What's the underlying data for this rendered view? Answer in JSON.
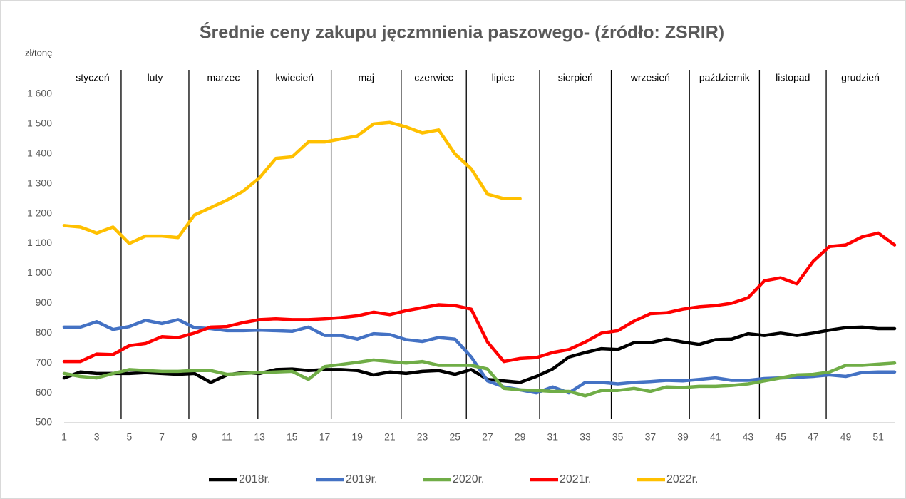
{
  "chart_data": {
    "type": "line",
    "title": "Średnie ceny zakupu jęczmnienia paszowego- (źródło: ZSRIR)",
    "y_label": "zł/tonę",
    "x": [
      1,
      2,
      3,
      4,
      5,
      6,
      7,
      8,
      9,
      10,
      11,
      12,
      13,
      14,
      15,
      16,
      17,
      18,
      19,
      20,
      21,
      22,
      23,
      24,
      25,
      26,
      27,
      28,
      29,
      30,
      31,
      32,
      33,
      34,
      35,
      36,
      37,
      38,
      39,
      40,
      41,
      42,
      43,
      44,
      45,
      46,
      47,
      48,
      49,
      50,
      51,
      52
    ],
    "xlim": [
      1,
      52
    ],
    "xticks": [
      1,
      3,
      5,
      7,
      9,
      11,
      13,
      15,
      17,
      19,
      21,
      23,
      25,
      27,
      29,
      31,
      33,
      35,
      37,
      39,
      41,
      43,
      45,
      47,
      49,
      51
    ],
    "ylim": [
      500,
      1600
    ],
    "yticks": [
      500,
      600,
      700,
      800,
      900,
      {
        "value": 1000,
        "label": "1 000"
      },
      {
        "value": 1100,
        "label": "1 100"
      },
      {
        "value": 1200,
        "label": "1 200"
      },
      {
        "value": 1300,
        "label": "1 300"
      },
      {
        "value": 1400,
        "label": "1 400"
      },
      {
        "value": 1500,
        "label": "1 500"
      },
      {
        "value": 1600,
        "label": "1 600"
      }
    ],
    "grid": false,
    "legend": "bottom",
    "months": [
      "styczeń",
      "luty",
      "marzec",
      "kwiecień",
      "maj",
      "czerwiec",
      "lipiec",
      "sierpień",
      "wrzesień",
      "październik",
      "listopad",
      "grudzień"
    ],
    "month_dividers": [
      4.5,
      8.66,
      12.9,
      17.4,
      21.7,
      25.7,
      30.2,
      34.6,
      39.4,
      43.7,
      47.8
    ],
    "series": [
      {
        "name": "2018r.",
        "color": "#000000",
        "values": [
          650,
          670,
          665,
          665,
          665,
          668,
          665,
          662,
          665,
          635,
          660,
          668,
          665,
          678,
          680,
          675,
          678,
          678,
          675,
          660,
          670,
          665,
          672,
          675,
          662,
          678,
          645,
          640,
          635,
          655,
          680,
          720,
          735,
          748,
          745,
          768,
          768,
          780,
          770,
          762,
          778,
          780,
          798,
          792,
          800,
          792,
          800,
          810,
          818,
          820,
          815,
          815
        ]
      },
      {
        "name": "2019r.",
        "color": "#4472c4",
        "values": [
          820,
          820,
          838,
          812,
          822,
          843,
          832,
          845,
          818,
          815,
          808,
          808,
          810,
          808,
          806,
          820,
          792,
          792,
          780,
          798,
          795,
          778,
          772,
          785,
          780,
          720,
          640,
          620,
          610,
          600,
          620,
          600,
          635,
          635,
          630,
          635,
          638,
          642,
          640,
          645,
          650,
          642,
          642,
          648,
          650,
          652,
          655,
          660,
          655,
          668,
          670,
          670
        ]
      },
      {
        "name": "2020r.",
        "color": "#70ad47",
        "values": [
          665,
          655,
          650,
          665,
          678,
          675,
          672,
          672,
          675,
          675,
          662,
          665,
          668,
          670,
          672,
          645,
          688,
          695,
          702,
          710,
          705,
          700,
          705,
          692,
          692,
          692,
          680,
          615,
          610,
          608,
          605,
          605,
          590,
          608,
          608,
          615,
          605,
          620,
          618,
          622,
          622,
          625,
          630,
          640,
          650,
          660,
          662,
          670,
          692,
          692,
          696,
          700
        ]
      },
      {
        "name": "2021r.",
        "color": "#ff0000",
        "values": [
          705,
          705,
          730,
          728,
          758,
          765,
          788,
          785,
          800,
          820,
          822,
          835,
          845,
          848,
          845,
          845,
          848,
          852,
          858,
          870,
          862,
          875,
          885,
          895,
          892,
          880,
          770,
          705,
          715,
          718,
          735,
          745,
          770,
          800,
          808,
          840,
          865,
          868,
          880,
          888,
          892,
          900,
          918,
          975,
          985,
          965,
          1040,
          1090,
          1095,
          1122,
          1135,
          1095
        ]
      },
      {
        "name": "2022r.",
        "color": "#ffc000",
        "values": [
          1160,
          1155,
          1135,
          1155,
          1100,
          1125,
          1125,
          1120,
          1195,
          1220,
          1245,
          1275,
          1320,
          1385,
          1390,
          1440,
          1440,
          1450,
          1460,
          1500,
          1505,
          1490,
          1470,
          1480,
          1400,
          1350,
          1265,
          1250,
          1250,
          null,
          null,
          null,
          null,
          null,
          null,
          null,
          null,
          null,
          null,
          null,
          null,
          null,
          null,
          null,
          null,
          null,
          null,
          null,
          null,
          null,
          null,
          null
        ]
      }
    ]
  }
}
